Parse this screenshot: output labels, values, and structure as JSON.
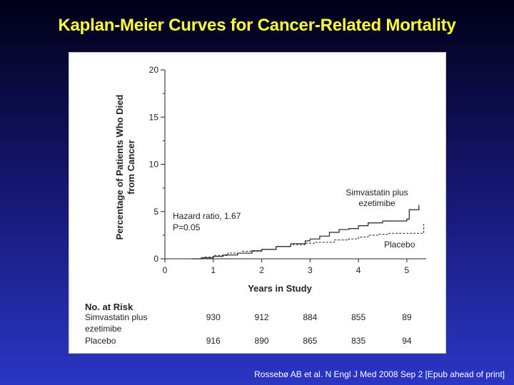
{
  "slide": {
    "title": "Kaplan-Meier Curves for Cancer-Related Mortality",
    "citation": "Rossebø AB et al. N Engl J Med 2008 Sep 2 [Epub ahead of print]"
  },
  "colors": {
    "title": "#ffff33",
    "background_top": "#000018",
    "background_bottom": "#2a36c4",
    "plot_ink": "#222222"
  },
  "chart_data": {
    "type": "line",
    "title": "",
    "xlabel": "Years in Study",
    "ylabel_lines": [
      "Percentage of Patients Who Died",
      "from Cancer"
    ],
    "xlim": [
      0,
      5.4
    ],
    "ylim": [
      0,
      20
    ],
    "x_ticks": [
      0,
      1,
      2,
      3,
      4,
      5
    ],
    "y_ticks": [
      0,
      5,
      10,
      15,
      20
    ],
    "grid": false,
    "annotations": {
      "stats_lines": [
        "Hazard ratio, 1.67",
        "P=0.05"
      ]
    },
    "series": [
      {
        "name": "Simvastatin plus ezetimibe",
        "label_lines": [
          "Simvastatin plus",
          "ezetimibe"
        ],
        "style": "solid",
        "points": [
          [
            0.55,
            0
          ],
          [
            0.75,
            0.1
          ],
          [
            1.0,
            0.25
          ],
          [
            1.2,
            0.4
          ],
          [
            1.5,
            0.6
          ],
          [
            1.8,
            0.85
          ],
          [
            2.0,
            1.0
          ],
          [
            2.3,
            1.3
          ],
          [
            2.6,
            1.6
          ],
          [
            2.9,
            1.9
          ],
          [
            3.0,
            2.1
          ],
          [
            3.2,
            2.4
          ],
          [
            3.4,
            2.8
          ],
          [
            3.6,
            3.1
          ],
          [
            3.8,
            3.2
          ],
          [
            4.0,
            3.5
          ],
          [
            4.2,
            3.8
          ],
          [
            4.5,
            4.0
          ],
          [
            5.0,
            4.2
          ],
          [
            5.05,
            5.2
          ],
          [
            5.25,
            5.2
          ],
          [
            5.25,
            5.7
          ]
        ]
      },
      {
        "name": "Placebo",
        "label_lines": [
          "Placebo"
        ],
        "style": "dashed",
        "points": [
          [
            0.5,
            0
          ],
          [
            0.8,
            0.2
          ],
          [
            1.0,
            0.35
          ],
          [
            1.3,
            0.6
          ],
          [
            1.6,
            0.8
          ],
          [
            2.0,
            1.0
          ],
          [
            2.3,
            1.3
          ],
          [
            2.6,
            1.5
          ],
          [
            2.9,
            1.65
          ],
          [
            3.1,
            1.75
          ],
          [
            3.5,
            2.0
          ],
          [
            3.8,
            2.1
          ],
          [
            4.0,
            2.3
          ],
          [
            4.2,
            2.5
          ],
          [
            4.4,
            2.6
          ],
          [
            4.6,
            2.7
          ],
          [
            5.0,
            2.7
          ],
          [
            5.35,
            2.7
          ],
          [
            5.35,
            3.7
          ]
        ]
      }
    ],
    "risk_table": {
      "header": "No. at Risk",
      "rows": [
        {
          "label_lines": [
            "Simvastatin plus",
            "ezetimibe"
          ],
          "values": [
            "930",
            "912",
            "884",
            "855",
            "89"
          ]
        },
        {
          "label_lines": [
            "Placebo"
          ],
          "values": [
            "916",
            "890",
            "865",
            "835",
            "94"
          ]
        }
      ]
    }
  }
}
